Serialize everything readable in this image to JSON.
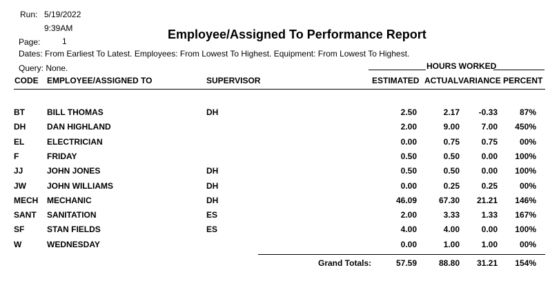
{
  "header": {
    "run_label": "Run:",
    "run_date": "5/19/2022",
    "run_time": "9:39AM",
    "page_label": "Page:",
    "page_number": "1",
    "title": "Employee/Assigned To Performance Report",
    "dates_line": "Dates: From Earliest To Latest. Employees: From Lowest To Highest. Equipment: From Lowest To Highest.",
    "query_line": "Query: None.",
    "hours_worked_label": "HOURS WORKED"
  },
  "columns": {
    "code": "CODE",
    "employee": "EMPLOYEE/ASSIGNED TO",
    "supervisor": "SUPERVISOR",
    "estimated": "ESTIMATED",
    "actual": "ACTUAL",
    "variance": "VARIANCE",
    "percent": "PERCENT"
  },
  "rows": [
    {
      "code": "BT",
      "name": "BILL THOMAS",
      "supervisor": "DH",
      "estimated": "2.50",
      "actual": "2.17",
      "variance": "-0.33",
      "percent": "87%"
    },
    {
      "code": "DH",
      "name": "DAN HIGHLAND",
      "supervisor": "",
      "estimated": "2.00",
      "actual": "9.00",
      "variance": "7.00",
      "percent": "450%"
    },
    {
      "code": "EL",
      "name": "ELECTRICIAN",
      "supervisor": "",
      "estimated": "0.00",
      "actual": "0.75",
      "variance": "0.75",
      "percent": "00%"
    },
    {
      "code": "F",
      "name": "FRIDAY",
      "supervisor": "",
      "estimated": "0.50",
      "actual": "0.50",
      "variance": "0.00",
      "percent": "100%"
    },
    {
      "code": "JJ",
      "name": "JOHN JONES",
      "supervisor": "DH",
      "estimated": "0.50",
      "actual": "0.50",
      "variance": "0.00",
      "percent": "100%"
    },
    {
      "code": "JW",
      "name": "JOHN WILLIAMS",
      "supervisor": "DH",
      "estimated": "0.00",
      "actual": "0.25",
      "variance": "0.25",
      "percent": "00%"
    },
    {
      "code": "MECH",
      "name": "MECHANIC",
      "supervisor": "DH",
      "estimated": "46.09",
      "actual": "67.30",
      "variance": "21.21",
      "percent": "146%"
    },
    {
      "code": "SANT",
      "name": "SANITATION",
      "supervisor": "ES",
      "estimated": "2.00",
      "actual": "3.33",
      "variance": "1.33",
      "percent": "167%"
    },
    {
      "code": "SF",
      "name": "STAN FIELDS",
      "supervisor": "ES",
      "estimated": "4.00",
      "actual": "4.00",
      "variance": "0.00",
      "percent": "100%"
    },
    {
      "code": "W",
      "name": "WEDNESDAY",
      "supervisor": "",
      "estimated": "0.00",
      "actual": "1.00",
      "variance": "1.00",
      "percent": "00%"
    }
  ],
  "totals": {
    "label": "Grand Totals:",
    "estimated": "57.59",
    "actual": "88.80",
    "variance": "31.21",
    "percent": "154%"
  }
}
